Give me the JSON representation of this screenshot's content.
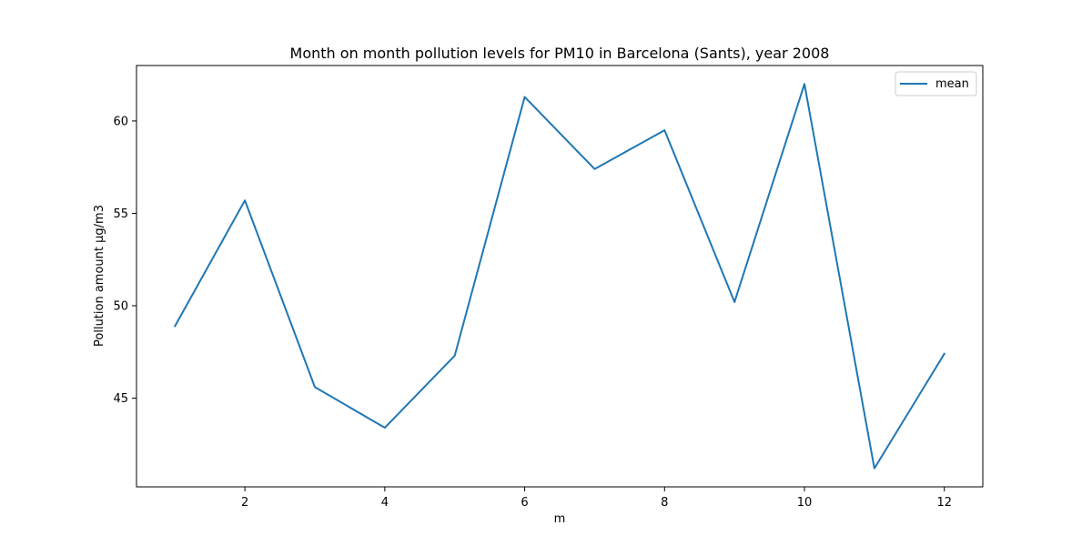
{
  "chart_data": {
    "type": "line",
    "title": "Month on month pollution levels for PM10 in Barcelona (Sants), year 2008",
    "xlabel": "m",
    "ylabel": "Pollution amount µg/m3",
    "x": [
      1,
      2,
      3,
      4,
      5,
      6,
      7,
      8,
      9,
      10,
      11,
      12
    ],
    "series": [
      {
        "name": "mean",
        "color": "#1f77b4",
        "values": [
          48.9,
          55.7,
          45.6,
          43.4,
          47.3,
          61.3,
          57.4,
          59.5,
          50.2,
          62.0,
          41.2,
          47.4
        ]
      }
    ],
    "xlim": [
      0.45,
      12.55
    ],
    "ylim": [
      40.2,
      63.0
    ],
    "xticks": [
      2,
      4,
      6,
      8,
      10,
      12
    ],
    "yticks": [
      45,
      50,
      55,
      60
    ],
    "grid": false,
    "legend_position": "upper right"
  }
}
